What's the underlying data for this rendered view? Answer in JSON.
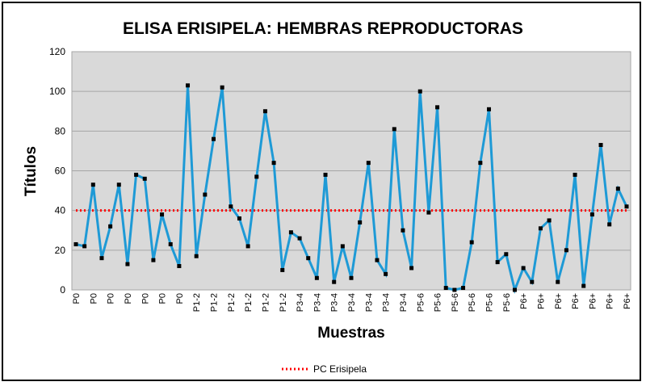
{
  "chart_data": {
    "type": "line",
    "title": "ELISA ERISIPELA: HEMBRAS REPRODUCTORAS",
    "xlabel": "Muestras",
    "ylabel": "Títulos",
    "ylim": [
      0,
      120
    ],
    "yticks": [
      0,
      20,
      40,
      60,
      80,
      100,
      120
    ],
    "grid": true,
    "legend": "bottom",
    "x": [
      "P0",
      "P0",
      "P0",
      "P0",
      "P0",
      "P0",
      "P0",
      "P0",
      "P0",
      "P0",
      "P0",
      "P0",
      "P0",
      "P1-2",
      "P1-2",
      "P1-2",
      "P1-2",
      "P1-2",
      "P1-2",
      "P1-2",
      "P1-2",
      "P1-2",
      "P1-2",
      "P1-2",
      "P3-4",
      "P3-4",
      "P3-4",
      "P3-4",
      "P3-4",
      "P3-4",
      "P3-4",
      "P3-4",
      "P3-4",
      "P3-4",
      "P3-4",
      "P3-4",
      "P3-4",
      "P3-4",
      "P5-6",
      "P5-6",
      "P5-6",
      "P5-6",
      "P5-6",
      "P5-6",
      "P5-6",
      "P5-6",
      "P5-6",
      "P5-6",
      "P5-6",
      "P5-6",
      "P5-6",
      "P6+",
      "P6+",
      "P6+",
      "P6+",
      "P6+",
      "P6+",
      "P6+",
      "P6+",
      "P6+",
      "P6+",
      "P6+",
      "P6+",
      "P6+",
      "P6+"
    ],
    "xtick_labels": [
      "P0",
      "P0",
      "P0",
      "P0",
      "P0",
      "P0",
      "P0",
      "P1-2",
      "P1-2",
      "P1-2",
      "P1-2",
      "P1-2",
      "P1-2",
      "P3-4",
      "P3-4",
      "P3-4",
      "P3-4",
      "P3-4",
      "P3-4",
      "P3-4",
      "P5-6",
      "P5-6",
      "P5-6",
      "P5-6",
      "P5-6",
      "P5-6",
      "P6+",
      "P6+",
      "P6+",
      "P6+",
      "P6+",
      "P6+",
      "P6+"
    ],
    "series": [
      {
        "name": "",
        "color": "#1e9ad6",
        "marker_color": "#000000",
        "values": [
          23,
          22,
          53,
          16,
          32,
          53,
          13,
          58,
          56,
          15,
          38,
          23,
          12,
          103,
          17,
          48,
          76,
          102,
          42,
          36,
          22,
          57,
          90,
          64,
          10,
          29,
          26,
          16,
          6,
          58,
          4,
          22,
          6,
          34,
          64,
          15,
          8,
          81,
          30,
          11,
          100,
          39,
          92,
          1,
          0,
          1,
          24,
          64,
          91,
          14,
          18,
          0,
          11,
          4,
          31,
          35,
          4,
          20,
          58,
          2,
          38,
          73,
          33,
          51,
          42
        ]
      },
      {
        "name": "PC Erisipela",
        "color": "#ff0000",
        "style": "dotted",
        "values": [
          40,
          40,
          40,
          40,
          40,
          40,
          40,
          40,
          40,
          40,
          40,
          40,
          40,
          40,
          40,
          40,
          40,
          40,
          40,
          40,
          40,
          40,
          40,
          40,
          40,
          40,
          40,
          40,
          40,
          40,
          40,
          40,
          40,
          40,
          40,
          40,
          40,
          40,
          40,
          40,
          40,
          40,
          40,
          40,
          40,
          40,
          40,
          40,
          40,
          40,
          40,
          40,
          40,
          40,
          40,
          40,
          40,
          40,
          40,
          40,
          40,
          40,
          40,
          40,
          40
        ]
      }
    ]
  }
}
